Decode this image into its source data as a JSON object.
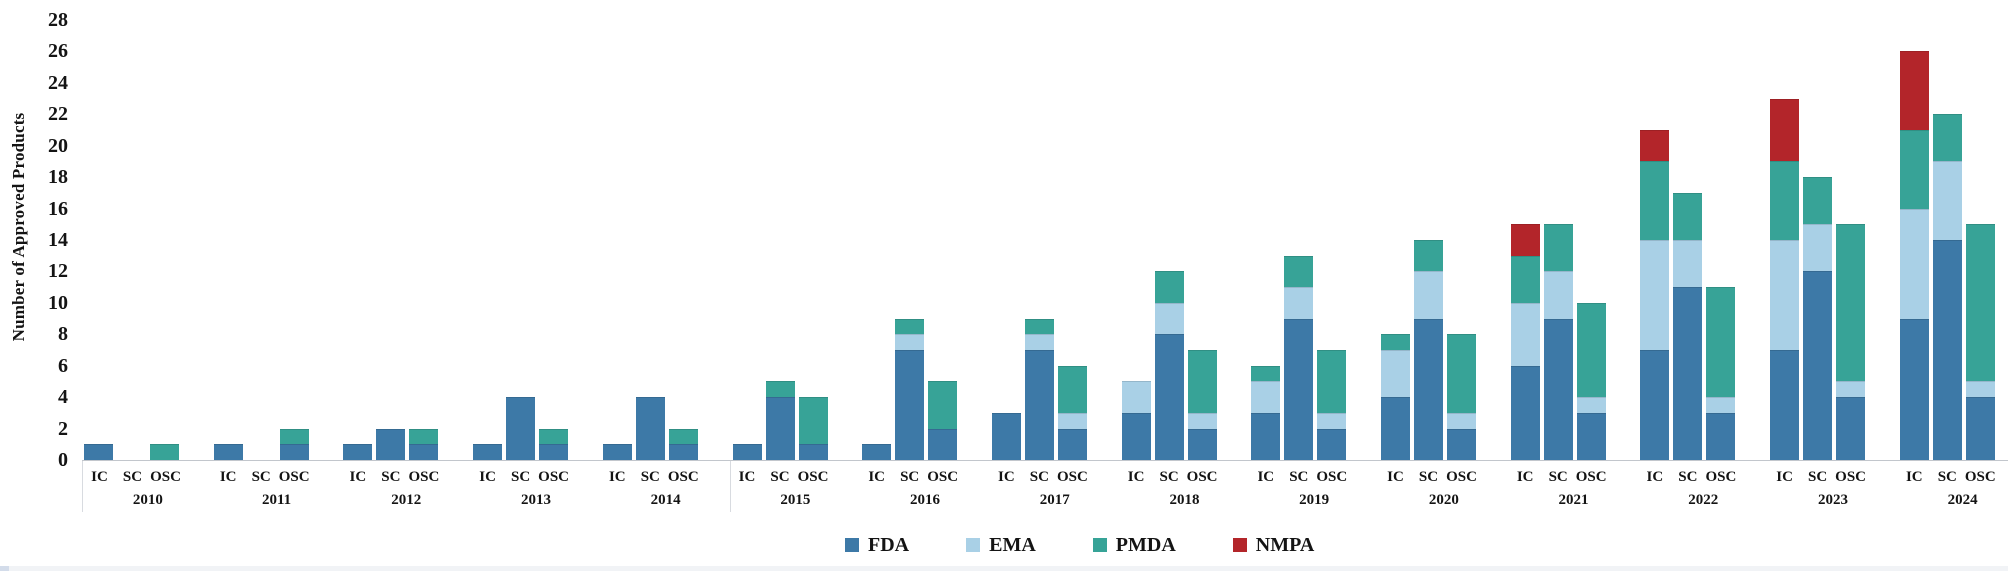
{
  "chart_data": {
    "type": "bar",
    "stacked": true,
    "title": "",
    "xlabel": "",
    "ylabel": "Number of Approved Products",
    "ylim": [
      0,
      28
    ],
    "ytick_step": 2,
    "ytick_labels": [
      "0",
      "2",
      "4",
      "6",
      "8",
      "10",
      "12",
      "14",
      "16",
      "18",
      "20",
      "22",
      "24",
      "26",
      "28"
    ],
    "grid": false,
    "legend_position": "bottom-center",
    "categories": [
      "IC",
      "SC",
      "OSC"
    ],
    "series_names": [
      "FDA",
      "EMA",
      "PMDA",
      "NMPA"
    ],
    "series_colors": {
      "FDA": "#3d79a7",
      "EMA": "#a9d0e6",
      "PMDA": "#37a397",
      "NMPA": "#b3252a"
    },
    "value_order_note": "each category array lists counts in series_names order [FDA, EMA, PMDA, NMPA]",
    "years": [
      {
        "year": "2010",
        "IC": [
          1,
          0,
          0,
          0
        ],
        "SC": [
          0,
          0,
          0,
          0
        ],
        "OSC": [
          0,
          0,
          1,
          0
        ]
      },
      {
        "year": "2011",
        "IC": [
          1,
          0,
          0,
          0
        ],
        "SC": [
          0,
          0,
          0,
          0
        ],
        "OSC": [
          1,
          0,
          1,
          0
        ]
      },
      {
        "year": "2012",
        "IC": [
          1,
          0,
          0,
          0
        ],
        "SC": [
          2,
          0,
          0,
          0
        ],
        "OSC": [
          1,
          0,
          1,
          0
        ]
      },
      {
        "year": "2013",
        "IC": [
          1,
          0,
          0,
          0
        ],
        "SC": [
          4,
          0,
          0,
          0
        ],
        "OSC": [
          1,
          0,
          1,
          0
        ]
      },
      {
        "year": "2014",
        "IC": [
          1,
          0,
          0,
          0
        ],
        "SC": [
          4,
          0,
          0,
          0
        ],
        "OSC": [
          1,
          0,
          1,
          0
        ]
      },
      {
        "year": "2015",
        "IC": [
          1,
          0,
          0,
          0
        ],
        "SC": [
          4,
          0,
          1,
          0
        ],
        "OSC": [
          1,
          0,
          3,
          0
        ]
      },
      {
        "year": "2016",
        "IC": [
          1,
          0,
          0,
          0
        ],
        "SC": [
          7,
          1,
          1,
          0
        ],
        "OSC": [
          2,
          0,
          3,
          0
        ]
      },
      {
        "year": "2017",
        "IC": [
          3,
          0,
          0,
          0
        ],
        "SC": [
          7,
          1,
          1,
          0
        ],
        "OSC": [
          2,
          1,
          3,
          0
        ]
      },
      {
        "year": "2018",
        "IC": [
          3,
          2,
          0,
          0
        ],
        "SC": [
          8,
          2,
          2,
          0
        ],
        "OSC": [
          2,
          1,
          4,
          0
        ]
      },
      {
        "year": "2019",
        "IC": [
          3,
          2,
          1,
          0
        ],
        "SC": [
          9,
          2,
          2,
          0
        ],
        "OSC": [
          2,
          1,
          4,
          0
        ]
      },
      {
        "year": "2020",
        "IC": [
          4,
          3,
          1,
          0
        ],
        "SC": [
          9,
          3,
          2,
          0
        ],
        "OSC": [
          2,
          1,
          5,
          0
        ]
      },
      {
        "year": "2021",
        "IC": [
          6,
          4,
          3,
          2
        ],
        "SC": [
          9,
          3,
          3,
          0
        ],
        "OSC": [
          3,
          1,
          6,
          0
        ]
      },
      {
        "year": "2022",
        "IC": [
          7,
          7,
          5,
          2
        ],
        "SC": [
          11,
          3,
          3,
          0
        ],
        "OSC": [
          3,
          1,
          7,
          0
        ]
      },
      {
        "year": "2023",
        "IC": [
          7,
          7,
          5,
          4
        ],
        "SC": [
          12,
          3,
          3,
          0
        ],
        "OSC": [
          4,
          1,
          10,
          0
        ]
      },
      {
        "year": "2024",
        "IC": [
          9,
          7,
          5,
          5
        ],
        "SC": [
          14,
          5,
          3,
          0
        ],
        "OSC": [
          4,
          1,
          10,
          0
        ]
      }
    ]
  },
  "legend": {
    "items": [
      "FDA",
      "EMA",
      "PMDA",
      "NMPA"
    ]
  }
}
